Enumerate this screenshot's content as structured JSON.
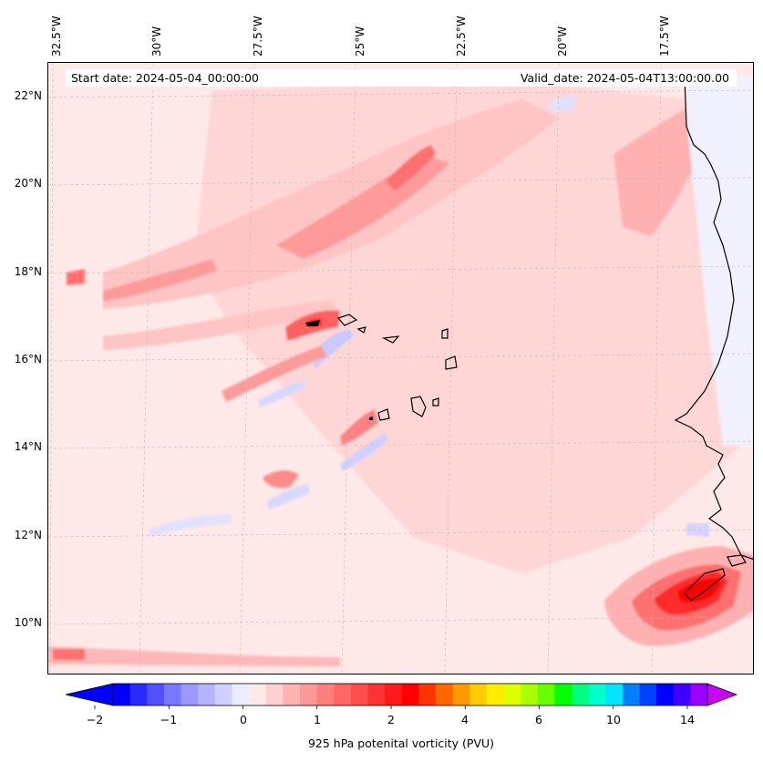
{
  "header": {
    "start_date": "Start date: 2024-05-04_00:00:00",
    "valid_date": "Valid_date: 2024-05-04T13:00:00.00"
  },
  "lon_labels": [
    "32.5°W",
    "30°W",
    "27.5°W",
    "25°W",
    "22.5°W",
    "20°W",
    "17.5°W"
  ],
  "lat_labels": [
    "22°N",
    "20°N",
    "18°N",
    "16°N",
    "14°N",
    "12°N",
    "10°N"
  ],
  "colorbar": {
    "label": "925 hPa potenital vorticity (PVU)",
    "ticks": [
      "−2",
      "−1",
      "0",
      "1",
      "2",
      "4",
      "6",
      "10",
      "14"
    ],
    "colors": [
      "#0000ff",
      "#2a2aff",
      "#5050ff",
      "#7878ff",
      "#9999ff",
      "#b3b3ff",
      "#d0d0ff",
      "#ececff",
      "#ffe8e8",
      "#ffd0d0",
      "#ffb3b3",
      "#ff9999",
      "#ff7f7f",
      "#ff6666",
      "#ff4c4c",
      "#ff3333",
      "#ff1a1a",
      "#ff0000",
      "#ff3300",
      "#ff6600",
      "#ff9900",
      "#ffcc00",
      "#ffee00",
      "#ddff00",
      "#aaff00",
      "#66ff00",
      "#00ff00",
      "#00ff80",
      "#00ffcc",
      "#00e5ff",
      "#0080ff",
      "#0040ff",
      "#0000ff",
      "#4000ff",
      "#9900ff"
    ],
    "under_color": "#0000ff",
    "over_color": "#cc00ff"
  },
  "map": {
    "background_color": "#ffe8e8",
    "coast_color": "#000000",
    "grid_color": "#bbbbbb"
  }
}
